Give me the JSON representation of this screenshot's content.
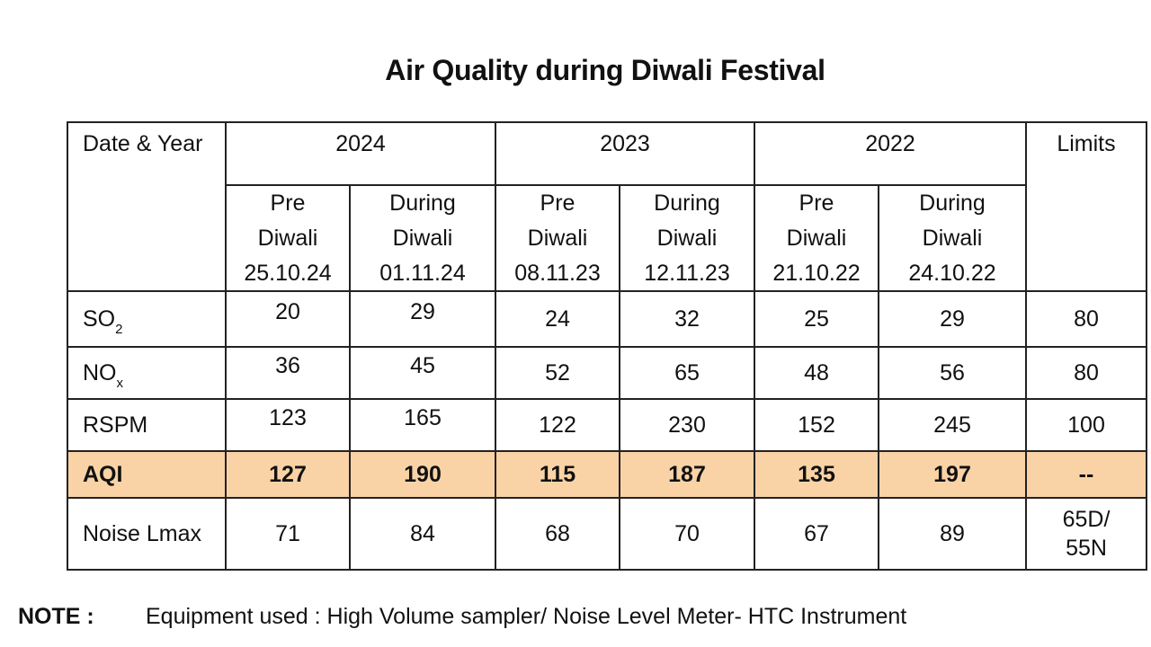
{
  "title": "Air Quality during Diwali Festival",
  "table": {
    "label_header": "Date & Year",
    "limits_header": "Limits",
    "years": [
      "2024",
      "2023",
      "2022"
    ],
    "subheaders": [
      {
        "line1": "Pre",
        "line2": "Diwali",
        "date": "25.10.24"
      },
      {
        "line1": "During",
        "line2": "Diwali",
        "date": "01.11.24"
      },
      {
        "line1": "Pre",
        "line2": "Diwali",
        "date": "08.11.23"
      },
      {
        "line1": "During",
        "line2": "Diwali",
        "date": "12.11.23"
      },
      {
        "line1": "Pre",
        "line2": "Diwali",
        "date": "21.10.22"
      },
      {
        "line1": "During",
        "line2": "Diwali",
        "date": "24.10.22"
      }
    ],
    "rows": [
      {
        "label_main": "SO",
        "label_sub": "2",
        "values": [
          "20",
          "29",
          "24",
          "32",
          "25",
          "29"
        ],
        "limit": "80"
      },
      {
        "label_main": "NO",
        "label_sub": "x",
        "values": [
          "36",
          "45",
          "52",
          "65",
          "48",
          "56"
        ],
        "limit": "80"
      },
      {
        "label_main": "RSPM",
        "label_sub": "",
        "values": [
          "123",
          "165",
          "122",
          "230",
          "152",
          "245"
        ],
        "limit": "100"
      },
      {
        "label_main": "AQI",
        "label_sub": "",
        "values": [
          "127",
          "190",
          "115",
          "187",
          "135",
          "197"
        ],
        "limit": "--"
      },
      {
        "label_main": "Noise Lmax",
        "label_sub": "",
        "values": [
          "71",
          "84",
          "68",
          "70",
          "67",
          "89"
        ],
        "limit_line1": "65D/",
        "limit_line2": "55N"
      }
    ]
  },
  "note": {
    "label": "NOTE :",
    "text": "Equipment used : High Volume sampler/ Noise Level Meter- HTC Instrument"
  },
  "colors": {
    "aqi_highlight": "#f9d3a6",
    "border": "#222222"
  }
}
